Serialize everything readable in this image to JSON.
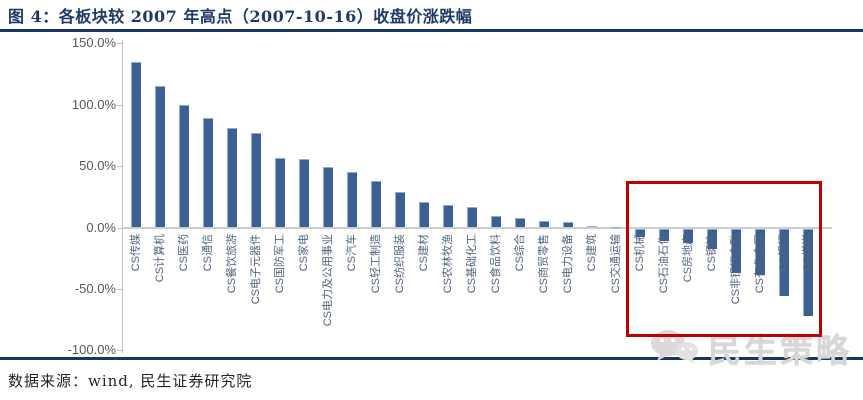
{
  "figure": {
    "title": "图 4：各板块较 2007 年高点（2007-10-16）收盘价涨跌幅",
    "source": "数据来源：wind, 民生证券研究院",
    "watermark": "民生策略",
    "watermark_icon": "wechat-chat-bubbles-icon"
  },
  "colors": {
    "bar": "#3a6191",
    "title_text": "#1f3a68",
    "rule": "#17375e",
    "highlight_box": "#c00000",
    "axis_tick_text": "#595959",
    "category_text": "#546480",
    "watermark_gray": "#d7d7d7"
  },
  "chart_data": {
    "type": "bar",
    "title": "各板块较 2007 年高点（2007-10-16）收盘价涨跌幅",
    "xlabel": "",
    "ylabel": "",
    "ylim": [
      -100,
      150
    ],
    "grid": false,
    "legend": false,
    "yticks": [
      {
        "label": "150.0%",
        "value": 150
      },
      {
        "label": "100.0%",
        "value": 100
      },
      {
        "label": "50.0%",
        "value": 50
      },
      {
        "label": "0.0%",
        "value": 0
      },
      {
        "label": "-50.0%",
        "value": -50
      },
      {
        "label": "-100.0%",
        "value": -100
      }
    ],
    "categories": [
      "CS传媒",
      "CS计算机",
      "CS医药",
      "CS通信",
      "CS餐饮旅游",
      "CS电子元器件",
      "CS国防军工",
      "CS家电",
      "CS电力及公用事业",
      "CS汽车",
      "CS轻工制造",
      "CS纺织服装",
      "CS建材",
      "CS农林牧渔",
      "CS基础化工",
      "CS食品饮料",
      "CS综合",
      "CS商贸零售",
      "CS电力设备",
      "CS建筑",
      "CS交通运输",
      "CS机械",
      "CS石油石化",
      "CS房地产",
      "CS钢铁",
      "CS非银行金融",
      "CS有色金属",
      "CS银行",
      "CS煤炭"
    ],
    "values": [
      135,
      115,
      100,
      89,
      81,
      77,
      57,
      56,
      49,
      45,
      38,
      29,
      21,
      18,
      17,
      9.5,
      7.5,
      5.5,
      4.5,
      1.5,
      0.5,
      -7,
      -10,
      -12,
      -17,
      -36,
      -38,
      -55,
      -71
    ],
    "value_unit": "%",
    "highlight": {
      "from": "CS机械",
      "to": "CS煤炭",
      "color": "#c00000",
      "meaning": "sectors below 2007 high"
    }
  }
}
